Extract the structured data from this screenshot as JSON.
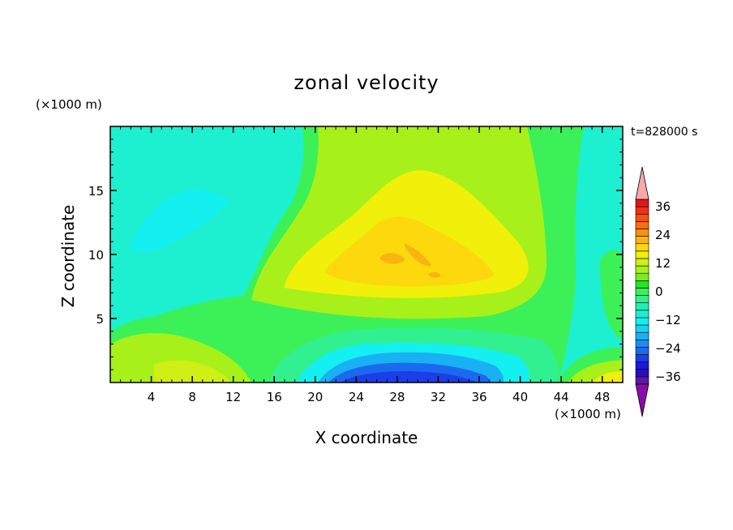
{
  "chart_data": {
    "type": "heatmap",
    "title": "zonal velocity",
    "xlabel": "X coordinate",
    "ylabel": "Z coordinate",
    "x_unit_label": "(×1000 m)",
    "y_unit_label": "(×1000 m)",
    "time_label": "t=828000 s",
    "xlim": [
      0,
      50
    ],
    "ylim": [
      0,
      20
    ],
    "xticks": [
      4,
      8,
      12,
      16,
      20,
      24,
      28,
      32,
      36,
      40,
      44,
      48
    ],
    "yticks": [
      5,
      10,
      15
    ],
    "colorbar": {
      "levels": [
        -42,
        -39,
        -36,
        -33,
        -30,
        -27,
        -24,
        -21,
        -18,
        -15,
        -12,
        -9,
        -6,
        -3,
        0,
        3,
        6,
        9,
        12,
        15,
        18,
        21,
        24,
        27,
        30,
        33,
        36,
        39,
        42
      ],
      "tick_labels": [
        "36",
        "24",
        "12",
        "0",
        "−12",
        "−24",
        "−36"
      ],
      "tick_values": [
        36,
        24,
        12,
        0,
        -12,
        -24,
        -36
      ],
      "colors": [
        "#8a0ca8",
        "#5a1aa0",
        "#2a0cc0",
        "#1a1ad8",
        "#1c3ee8",
        "#1a6aee",
        "#1a8ef0",
        "#1ab0f4",
        "#16d2f4",
        "#14f0f0",
        "#1cf0d0",
        "#20f0b0",
        "#30f090",
        "#3cf058",
        "#22e822",
        "#7aee1c",
        "#a8f01a",
        "#cef014",
        "#f0f00a",
        "#fcd80c",
        "#f8b410",
        "#f89010",
        "#f86e10",
        "#f85010",
        "#f03018",
        "#e01818",
        "#f8a8a8"
      ]
    }
  }
}
